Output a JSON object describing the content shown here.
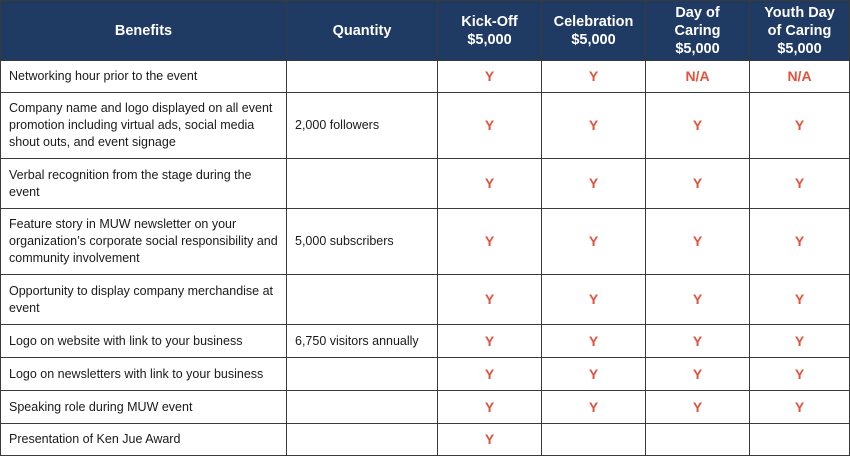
{
  "headers": {
    "benefits": "Benefits",
    "quantity": "Quantity",
    "kickoff": [
      "Kick-Off",
      "$5,000"
    ],
    "celebration": [
      "Celebration",
      "$5,000"
    ],
    "day_of_caring": [
      "Day of",
      "Caring",
      "$5,000"
    ],
    "youth_day": [
      "Youth Day",
      "of Caring",
      "$5,000"
    ]
  },
  "accent_color": "#e2533d",
  "header_color": "#1f3a63",
  "rows": [
    {
      "benefit": "Networking hour prior to the event",
      "quantity": "",
      "kickoff": "Y",
      "celebration": "Y",
      "day_of_caring": "N/A",
      "youth_day": "N/A"
    },
    {
      "benefit": "Company name and logo displayed on all event promotion including virtual ads, social media shout outs, and event signage",
      "quantity": "2,000 followers",
      "kickoff": "Y",
      "celebration": "Y",
      "day_of_caring": "Y",
      "youth_day": "Y"
    },
    {
      "benefit": "Verbal recognition from the stage during the event",
      "quantity": "",
      "kickoff": "Y",
      "celebration": "Y",
      "day_of_caring": "Y",
      "youth_day": "Y"
    },
    {
      "benefit": "Feature story in MUW newsletter on your organization’s corporate social responsibility and community involvement",
      "quantity": "5,000 subscribers",
      "kickoff": "Y",
      "celebration": "Y",
      "day_of_caring": "Y",
      "youth_day": "Y"
    },
    {
      "benefit": "Opportunity to display company merchandise at event",
      "quantity": "",
      "kickoff": "Y",
      "celebration": "Y",
      "day_of_caring": "Y",
      "youth_day": "Y"
    },
    {
      "benefit": "Logo on website with link to your business",
      "quantity": "6,750 visitors annually",
      "kickoff": "Y",
      "celebration": "Y",
      "day_of_caring": "Y",
      "youth_day": "Y"
    },
    {
      "benefit": "Logo on newsletters with link to your business",
      "quantity": "",
      "kickoff": "Y",
      "celebration": "Y",
      "day_of_caring": "Y",
      "youth_day": "Y"
    },
    {
      "benefit": "Speaking role during MUW event",
      "quantity": "",
      "kickoff": "Y",
      "celebration": "Y",
      "day_of_caring": "Y",
      "youth_day": "Y"
    },
    {
      "benefit": "Presentation of Ken Jue Award",
      "quantity": "",
      "kickoff": "Y",
      "celebration": "",
      "day_of_caring": "",
      "youth_day": ""
    }
  ]
}
